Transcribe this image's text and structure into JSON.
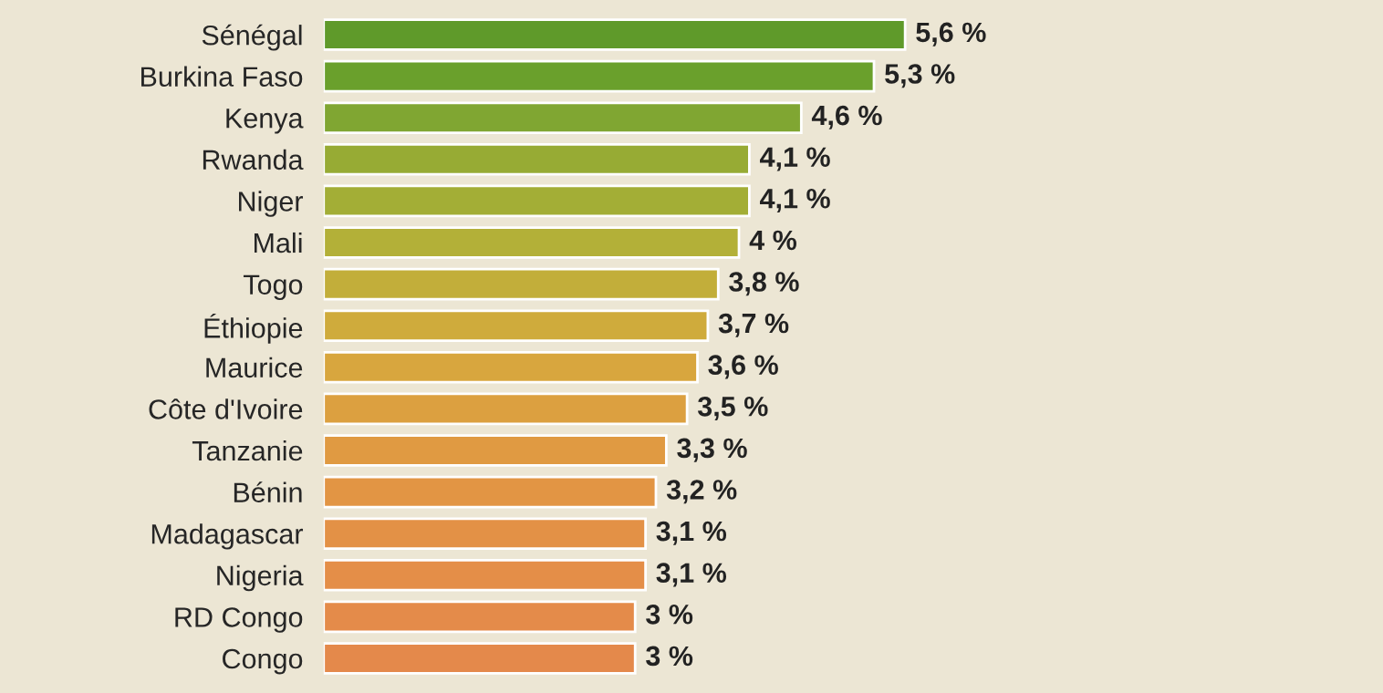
{
  "chart_data": {
    "type": "bar",
    "orientation": "horizontal",
    "categories": [
      "Sénégal",
      "Burkina Faso",
      "Kenya",
      "Rwanda",
      "Niger",
      "Mali",
      "Togo",
      "Éthiopie",
      "Maurice",
      "Côte d'Ivoire",
      "Tanzanie",
      "Bénin",
      "Madagascar",
      "Nigeria",
      "RD Congo",
      "Congo"
    ],
    "values": [
      5.6,
      5.3,
      4.6,
      4.1,
      4.1,
      4,
      3.8,
      3.7,
      3.6,
      3.5,
      3.3,
      3.2,
      3.1,
      3.1,
      3,
      3
    ],
    "value_labels": [
      "5,6 %",
      "5,3 %",
      "4,6 %",
      "4,1 %",
      "4,1 %",
      "4 %",
      "3,8 %",
      "3,7 %",
      "3,6 %",
      "3,5 %",
      "3,3 %",
      "3,2 %",
      "3,1 %",
      "3,1 %",
      "3 %",
      "3 %"
    ],
    "colors": [
      "#5f9a2a",
      "#6aa02c",
      "#80a632",
      "#97ab34",
      "#a3ae36",
      "#b3b038",
      "#c2ae3a",
      "#cfab3c",
      "#d8a63e",
      "#dca040",
      "#e09a42",
      "#e29544",
      "#e39146",
      "#e48e48",
      "#e48b4a",
      "#e4894b"
    ],
    "grid": false,
    "legend": false
  }
}
